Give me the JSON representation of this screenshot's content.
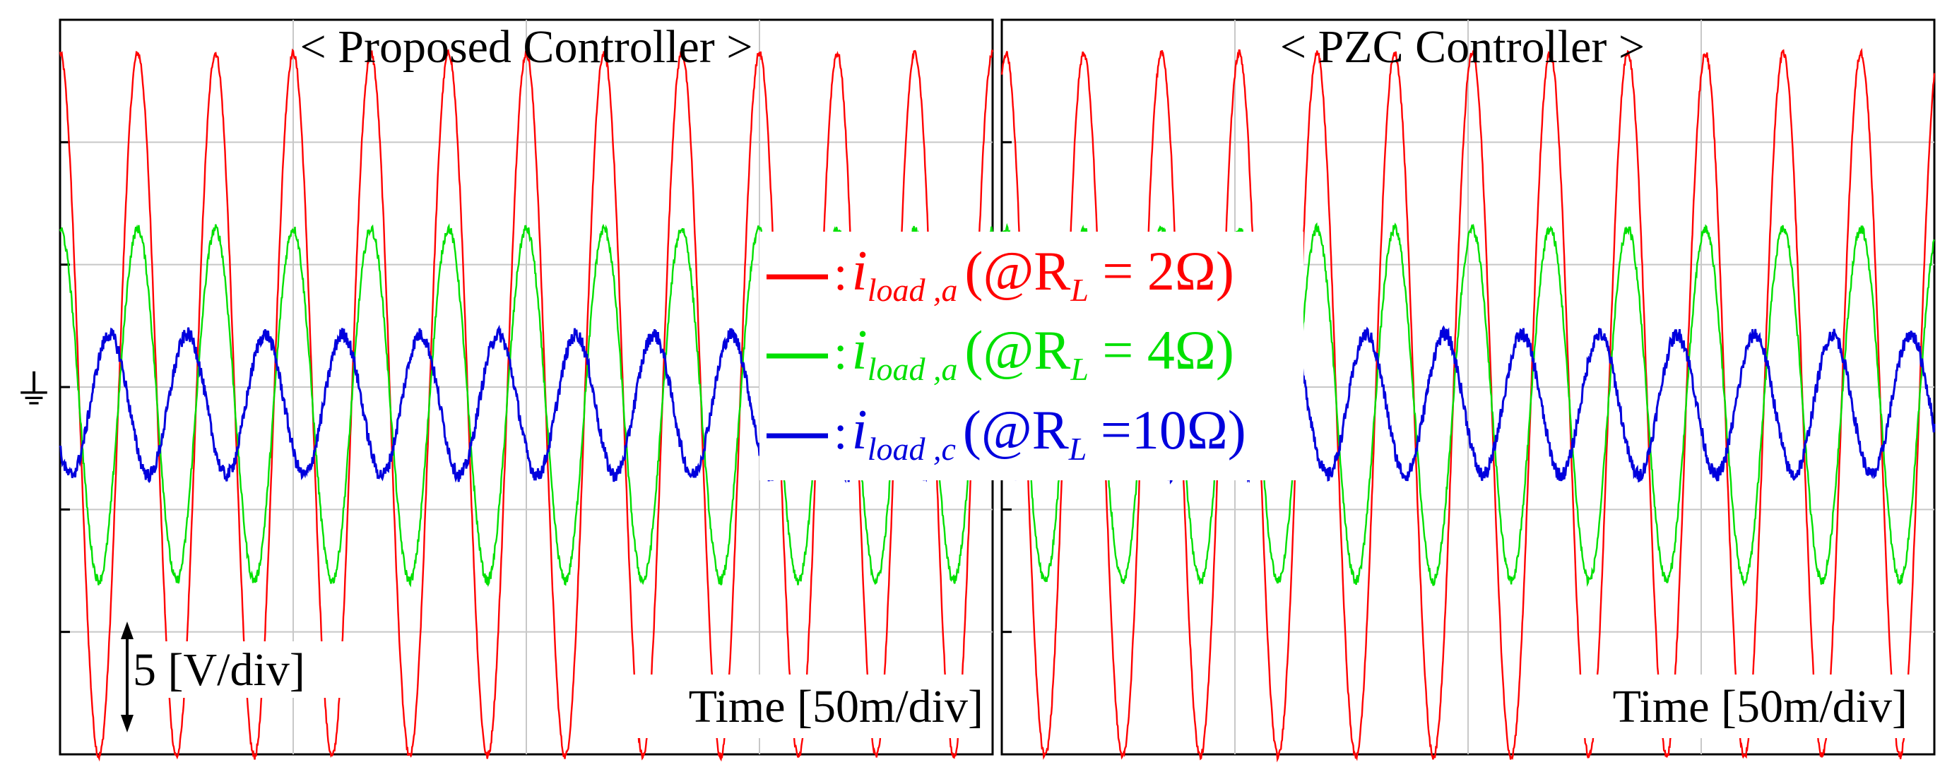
{
  "chart_data": [
    {
      "type": "line",
      "title": "< Proposed Controller >",
      "xlabel": "Time [50m/div]",
      "ylabel": "5 [V/div]",
      "x_divisions": 4,
      "y_divisions": 6,
      "xlim_div": [
        0,
        4
      ],
      "ylim_div": [
        -3,
        3
      ],
      "zero_offset_div": 0.6,
      "grid": true,
      "series": [
        {
          "name": "i_load,a (@R_L = 2Ω)",
          "color": "#ff0000",
          "amplitude_div": 3.0,
          "cycles": 12,
          "phase_deg": 90,
          "noise_div": 0.015
        },
        {
          "name": "i_load,a (@R_L = 4Ω)",
          "color": "#00e000",
          "amplitude_div": 1.5,
          "cycles": 12,
          "phase_deg": 90,
          "noise_div": 0.02
        },
        {
          "name": "i_load,c (@R_L = 10Ω)",
          "color": "#0000dd",
          "amplitude_div": 0.6,
          "cycles": 12,
          "phase_deg": -140,
          "noise_div": 0.03
        }
      ]
    },
    {
      "type": "line",
      "title": "< PZC Controller >",
      "xlabel": "Time [50m/div]",
      "x_divisions": 4,
      "y_divisions": 6,
      "xlim_div": [
        0,
        4
      ],
      "ylim_div": [
        -3,
        3
      ],
      "zero_offset_div": 0.6,
      "grid": true,
      "series": [
        {
          "name": "i_load,a (@R_L = 2Ω)",
          "color": "#ff0000",
          "amplitude_div": 3.0,
          "cycles": 12,
          "phase_deg": 70,
          "noise_div": 0.015
        },
        {
          "name": "i_load,a (@R_L = 4Ω)",
          "color": "#00e000",
          "amplitude_div": 1.5,
          "cycles": 12,
          "phase_deg": 70,
          "noise_div": 0.02
        },
        {
          "name": "i_load,c (@R_L = 10Ω)",
          "color": "#0000dd",
          "amplitude_div": 0.6,
          "cycles": 12,
          "phase_deg": -160,
          "noise_div": 0.03
        }
      ]
    }
  ],
  "legend": [
    {
      "sym": "i",
      "sub": "load ,a",
      "cond": "(@R",
      "cond_sub": "L",
      "eq": " = 2Ω)",
      "color": "#ff0000"
    },
    {
      "sym": "i",
      "sub": "load ,a",
      "cond": "(@R",
      "cond_sub": "L",
      "eq": " = 4Ω)",
      "color": "#00e000"
    },
    {
      "sym": "i",
      "sub": "load ,c",
      "cond": "(@R",
      "cond_sub": "L",
      "eq": " =10Ω)",
      "color": "#0000dd"
    }
  ],
  "ground_symbol": "⏚"
}
